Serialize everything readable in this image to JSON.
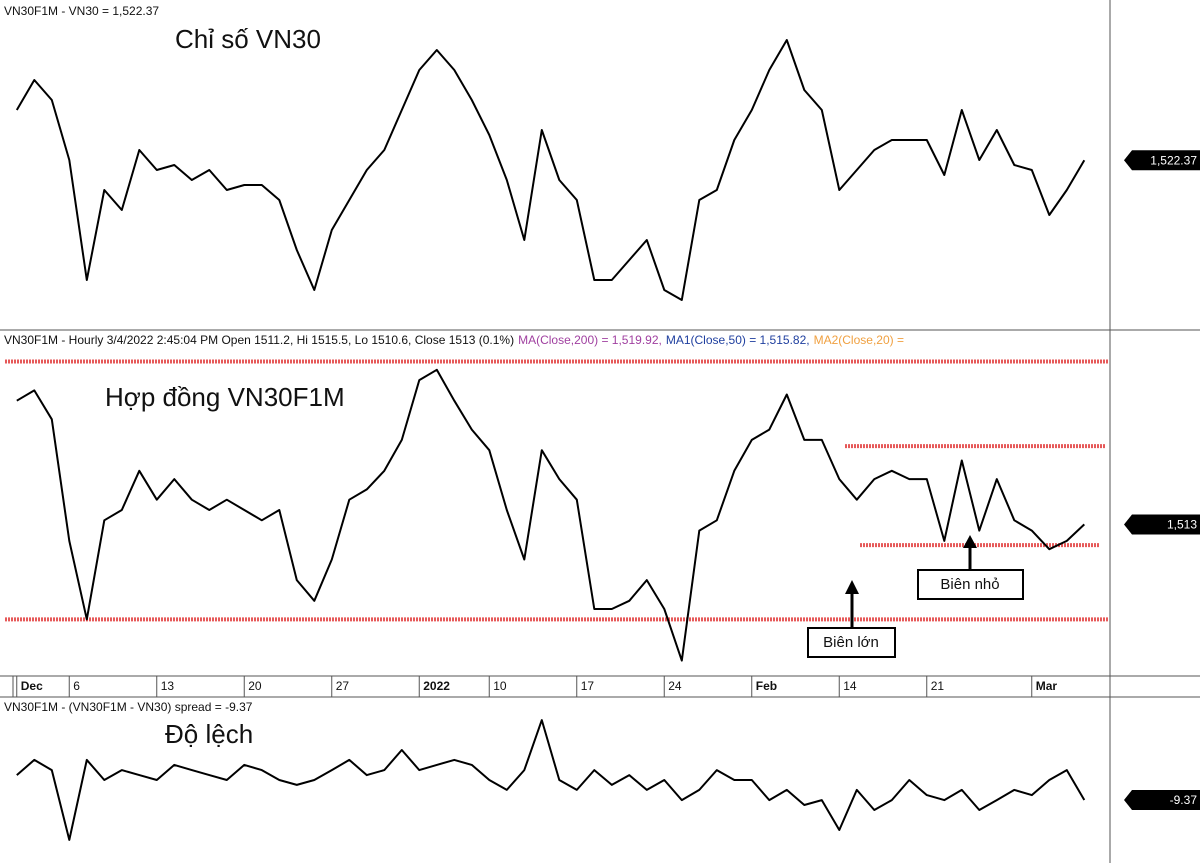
{
  "chart_data": [
    {
      "type": "line",
      "title": "VN30F1M - VN30 = 1,522.37",
      "label": "Chỉ số VN30",
      "color": "#000000",
      "values": [
        1547.5,
        1562.5,
        1552.5,
        1522.5,
        1462.5,
        1507.5,
        1497.5,
        1527.5,
        1517.5,
        1520,
        1512.5,
        1517.5,
        1507.5,
        1510,
        1510,
        1502.5,
        1477.5,
        1457.5,
        1487.5,
        1502.5,
        1517.5,
        1527.5,
        1547.5,
        1567.5,
        1577.5,
        1567.5,
        1552.5,
        1535,
        1512.5,
        1482.5,
        1537.5,
        1512.5,
        1502.5,
        1462.5,
        1462.5,
        1472.5,
        1482.5,
        1457.5,
        1452.5,
        1502.5,
        1507.5,
        1532.5,
        1547.5,
        1567.5,
        1582.5,
        1557.5,
        1547.5,
        1507.5,
        1517.5,
        1527.5,
        1532.5,
        1532.5,
        1532.5,
        1515,
        1547.5,
        1522.5,
        1537.5,
        1520,
        1517.5,
        1495,
        1507.5,
        1522.37,
        null
      ],
      "ylim": [
        1440,
        1600
      ],
      "last_label": "1,522.37"
    },
    {
      "type": "line",
      "title": "VN30F1M - Hourly 3/4/2022 2:45:04 PM Open 1511.2, Hi 1515.5, Lo 1510.6, Close 1513 (0.1%)",
      "indicators": [
        {
          "label": "MA(Close,200) = 1,519.92,",
          "color": "#a040a0"
        },
        {
          "label": "MA1(Close,50) = 1,515.82,",
          "color": "#1f3f9f"
        },
        {
          "label": "MA2(Close,20) =",
          "color": "#f0a040"
        }
      ],
      "label": "Hợp đồng VN30F1M",
      "color": "#000000",
      "categories": [
        "Dec",
        null,
        null,
        "6",
        null,
        null,
        null,
        null,
        "13",
        null,
        null,
        null,
        null,
        "20",
        null,
        null,
        null,
        null,
        "27",
        null,
        null,
        null,
        null,
        "2022",
        null,
        null,
        null,
        "10",
        null,
        null,
        null,
        null,
        "17",
        null,
        null,
        null,
        null,
        "24",
        null,
        null,
        null,
        null,
        "Feb",
        null,
        null,
        null,
        null,
        "14",
        null,
        null,
        null,
        null,
        "21",
        null,
        null,
        null,
        null,
        null,
        "Mar",
        null,
        null,
        null,
        null
      ],
      "values": [
        1573,
        1578,
        1564,
        1505,
        1467,
        1515,
        1520,
        1539,
        1525,
        1535,
        1525,
        1520,
        1525,
        1520,
        1515,
        1520,
        1486,
        1476,
        1496,
        1525,
        1530,
        1539,
        1554,
        1583,
        1588,
        1573,
        1559,
        1549,
        1520,
        1496,
        1549,
        1535,
        1525,
        1472,
        1472,
        1476,
        1486,
        1472,
        1447,
        1510,
        1515,
        1539,
        1554,
        1559,
        1576,
        1554,
        1554,
        1535,
        1525,
        1535,
        1539,
        1535,
        1535,
        1505,
        1544,
        1510,
        1535,
        1515,
        1510,
        1501,
        1505,
        1513,
        null
      ],
      "ylim": [
        1440,
        1600
      ],
      "last_label": "1,513",
      "hlines": [
        1592,
        1467,
        1551,
        1503
      ],
      "hline_color": "#e03030",
      "annotations": [
        "Biên lớn",
        "Biên nhỏ"
      ]
    },
    {
      "type": "line",
      "title": "VN30F1M - (VN30F1M - VN30) spread = -9.37",
      "label": "Độ lệch",
      "color": "#000000",
      "values": [
        -0.8,
        4.4,
        0.9,
        -23.1,
        4.4,
        -2.5,
        0.9,
        -0.8,
        -2.5,
        2.7,
        0.9,
        -0.8,
        -2.5,
        2.7,
        0.9,
        -2.5,
        -4.2,
        -2.5,
        0.9,
        4.4,
        -0.8,
        0.9,
        7.8,
        0.9,
        2.7,
        4.4,
        2.7,
        -2.5,
        -5.9,
        0.9,
        18.1,
        -2.5,
        -5.9,
        0.9,
        -4.2,
        -0.8,
        -5.9,
        -2.5,
        -9.4,
        -5.9,
        0.9,
        -2.5,
        -2.5,
        -9.4,
        -5.9,
        -11.1,
        -9.4,
        -19.7,
        -5.9,
        -12.8,
        -9.4,
        -2.5,
        -7.7,
        -9.4,
        -5.9,
        -12.8,
        -9.4,
        -5.9,
        -7.7,
        -2.5,
        0.9,
        -9.37,
        null
      ],
      "ylim": [
        -30,
        25
      ],
      "last_label": "-9.37"
    }
  ]
}
